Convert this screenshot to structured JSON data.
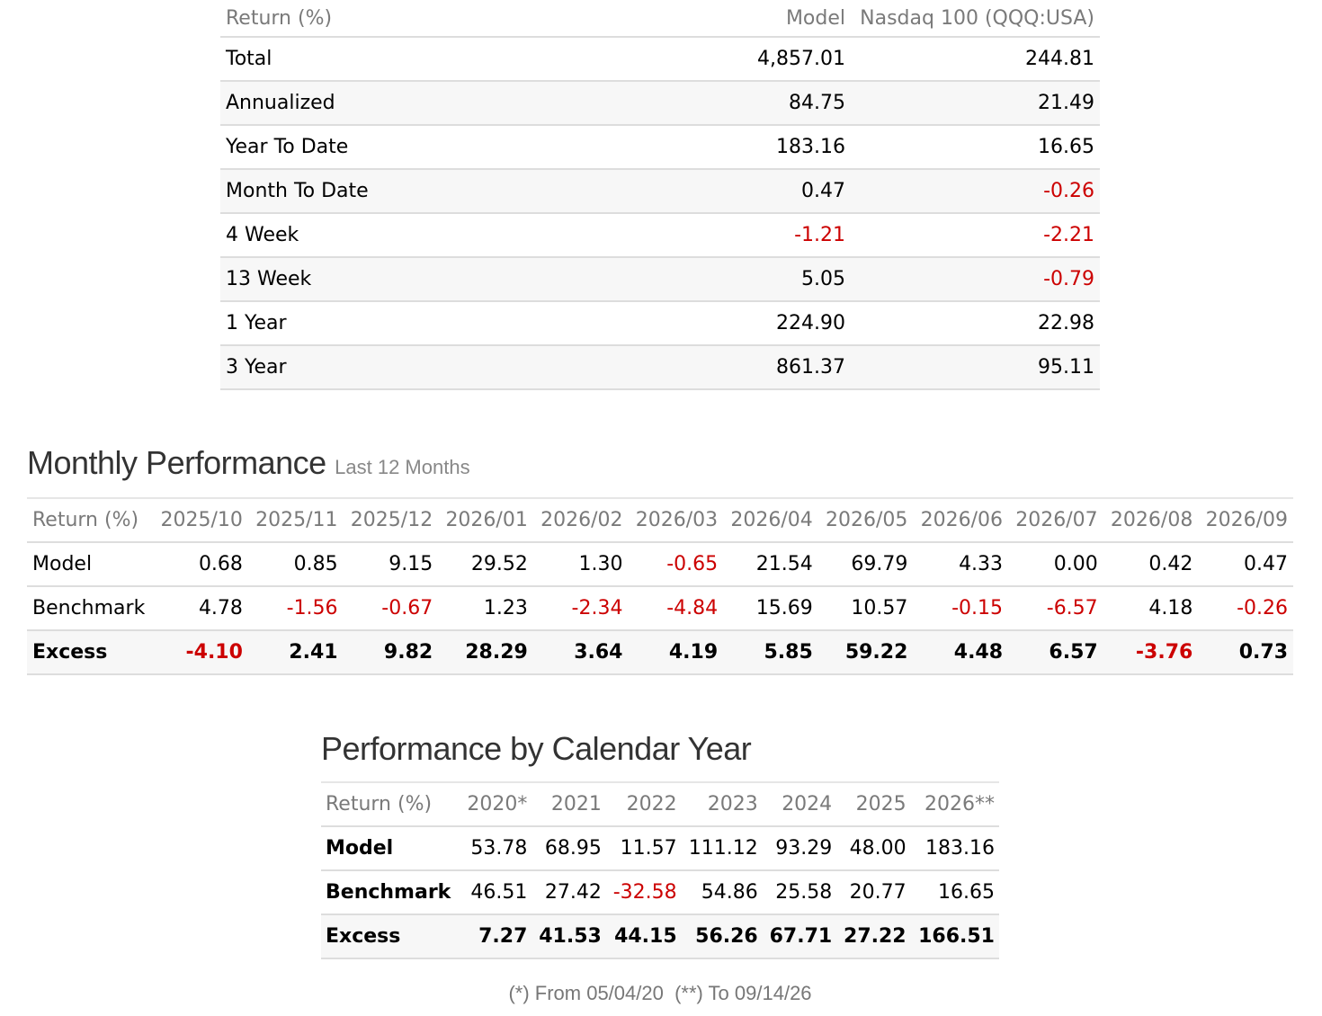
{
  "returns": {
    "header": {
      "label": "Return (%)",
      "model": "Model",
      "benchmark": "Nasdaq 100 (QQQ:USA)"
    },
    "rows": [
      {
        "label": "Total",
        "model": "4,857.01",
        "benchmark": "244.81"
      },
      {
        "label": "Annualized",
        "model": "84.75",
        "benchmark": "21.49"
      },
      {
        "label": "Year To Date",
        "model": "183.16",
        "benchmark": "16.65"
      },
      {
        "label": "Month To Date",
        "model": "0.47",
        "benchmark": "-0.26"
      },
      {
        "label": "4 Week",
        "model": "-1.21",
        "benchmark": "-2.21"
      },
      {
        "label": "13 Week",
        "model": "5.05",
        "benchmark": "-0.79"
      },
      {
        "label": "1 Year",
        "model": "224.90",
        "benchmark": "22.98"
      },
      {
        "label": "3 Year",
        "model": "861.37",
        "benchmark": "95.11"
      }
    ]
  },
  "monthly": {
    "title": "Monthly Performance",
    "subtitle": "Last 12 Months",
    "header_label": "Return (%)",
    "months": [
      "2025/10",
      "2025/11",
      "2025/12",
      "2026/01",
      "2026/02",
      "2026/03",
      "2026/04",
      "2026/05",
      "2026/06",
      "2026/07",
      "2026/08",
      "2026/09"
    ],
    "rows": [
      {
        "label": "Model",
        "values": [
          "0.68",
          "0.85",
          "9.15",
          "29.52",
          "1.30",
          "-0.65",
          "21.54",
          "69.79",
          "4.33",
          "0.00",
          "0.42",
          "0.47"
        ]
      },
      {
        "label": "Benchmark",
        "values": [
          "4.78",
          "-1.56",
          "-0.67",
          "1.23",
          "-2.34",
          "-4.84",
          "15.69",
          "10.57",
          "-0.15",
          "-6.57",
          "4.18",
          "-0.26"
        ]
      },
      {
        "label": "Excess",
        "values": [
          "-4.10",
          "2.41",
          "9.82",
          "28.29",
          "3.64",
          "4.19",
          "5.85",
          "59.22",
          "4.48",
          "6.57",
          "-3.76",
          "0.73"
        ]
      }
    ]
  },
  "calendar": {
    "title": "Performance by Calendar Year",
    "header_label": "Return (%)",
    "years": [
      "2020*",
      "2021",
      "2022",
      "2023",
      "2024",
      "2025",
      "2026**"
    ],
    "rows": [
      {
        "label": "Model",
        "values": [
          "53.78",
          "68.95",
          "11.57",
          "111.12",
          "93.29",
          "48.00",
          "183.16"
        ]
      },
      {
        "label": "Benchmark",
        "values": [
          "46.51",
          "27.42",
          "-32.58",
          "54.86",
          "25.58",
          "20.77",
          "16.65"
        ]
      },
      {
        "label": "Excess",
        "values": [
          "7.27",
          "41.53",
          "44.15",
          "56.26",
          "67.71",
          "27.22",
          "166.51"
        ]
      }
    ]
  },
  "footnote": "(*) From 05/04/20  (**) To 09/14/26",
  "colors": {
    "negative": "#cc0000",
    "header_text": "#7a7a7a",
    "row_alt": "#f7f7f7",
    "rule": "#dddddd"
  }
}
